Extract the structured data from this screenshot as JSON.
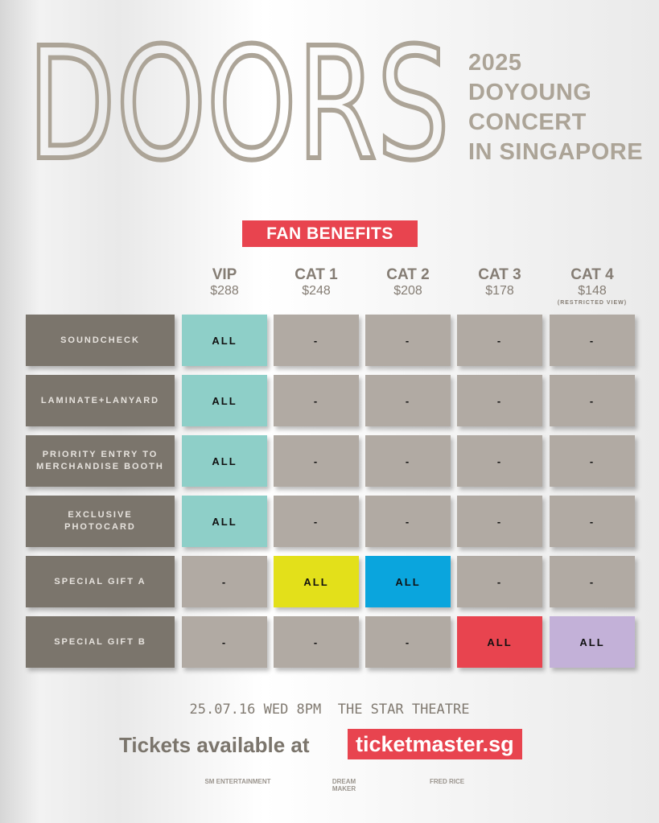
{
  "logo": "DOORS",
  "event": {
    "lines": [
      "2025",
      "DOYOUNG",
      "CONCERT",
      "IN SINGAPORE"
    ]
  },
  "badge": "FAN BENEFITS",
  "table": {
    "columns": [
      {
        "name": "VIP",
        "price": "$288"
      },
      {
        "name": "CAT 1",
        "price": "$248"
      },
      {
        "name": "CAT 2",
        "price": "$208"
      },
      {
        "name": "CAT 3",
        "price": "$178"
      },
      {
        "name": "CAT 4",
        "price": "$148",
        "note": "(RESTRICTED VIEW)"
      }
    ],
    "rows": [
      {
        "label": [
          "SOUNDCHECK"
        ],
        "cells": [
          "ALL",
          "-",
          "-",
          "-",
          "-"
        ],
        "colors": [
          "#8ecfc8",
          "#b1aaa3",
          "#b1aaa3",
          "#b1aaa3",
          "#b1aaa3"
        ]
      },
      {
        "label": [
          "LAMINATE+LANYARD"
        ],
        "cells": [
          "ALL",
          "-",
          "-",
          "-",
          "-"
        ],
        "colors": [
          "#8ecfc8",
          "#b1aaa3",
          "#b1aaa3",
          "#b1aaa3",
          "#b1aaa3"
        ]
      },
      {
        "label": [
          "PRIORITY ENTRY TO",
          "MERCHANDISE BOOTH"
        ],
        "cells": [
          "ALL",
          "-",
          "-",
          "-",
          "-"
        ],
        "colors": [
          "#8ecfc8",
          "#b1aaa3",
          "#b1aaa3",
          "#b1aaa3",
          "#b1aaa3"
        ]
      },
      {
        "label": [
          "EXCLUSIVE",
          "PHOTOCARD"
        ],
        "cells": [
          "ALL",
          "-",
          "-",
          "-",
          "-"
        ],
        "colors": [
          "#8ecfc8",
          "#b1aaa3",
          "#b1aaa3",
          "#b1aaa3",
          "#b1aaa3"
        ]
      },
      {
        "label": [
          "SPECIAL GIFT A"
        ],
        "cells": [
          "-",
          "ALL",
          "ALL",
          "-",
          "-"
        ],
        "colors": [
          "#b1aaa3",
          "#e3e01a",
          "#0aa5dd",
          "#b1aaa3",
          "#b1aaa3"
        ]
      },
      {
        "label": [
          "SPECIAL GIFT B"
        ],
        "cells": [
          "-",
          "-",
          "-",
          "ALL",
          "ALL"
        ],
        "colors": [
          "#b1aaa3",
          "#b1aaa3",
          "#b1aaa3",
          "#e8444f",
          "#c3b1d8"
        ]
      }
    ]
  },
  "footer": {
    "date_venue": "25.07.16 WED 8PM  THE STAR THEATRE",
    "tickets": "Tickets available at",
    "url": "ticketmaster.sg",
    "sponsors": [
      "SM ENTERTAINMENT",
      "DREAM MAKER",
      "FRED RICE"
    ]
  }
}
